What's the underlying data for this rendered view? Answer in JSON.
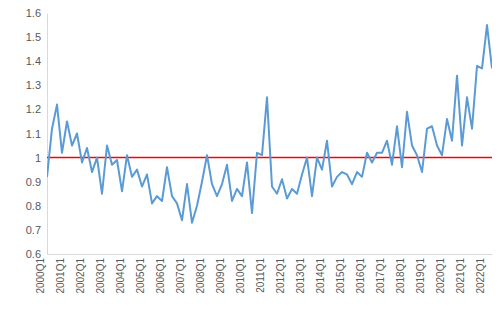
{
  "chart_data": {
    "type": "line",
    "categories": [
      "2000Q1",
      null,
      null,
      null,
      "2001Q1",
      null,
      null,
      null,
      "2002Q1",
      null,
      null,
      null,
      "2003Q1",
      null,
      null,
      null,
      "2004Q1",
      null,
      null,
      null,
      "2005Q1",
      null,
      null,
      null,
      "2006Q1",
      null,
      null,
      null,
      "2007Q1",
      null,
      null,
      null,
      "2008Q1",
      null,
      null,
      null,
      "2009Q1",
      null,
      null,
      null,
      "2010Q1",
      null,
      null,
      null,
      "2011Q1",
      null,
      null,
      null,
      "2012Q1",
      null,
      null,
      null,
      "2013Q1",
      null,
      null,
      null,
      "2014Q1",
      null,
      null,
      null,
      "2015Q1",
      null,
      null,
      null,
      "2016Q1",
      null,
      null,
      null,
      "2017Q1",
      null,
      null,
      null,
      "2018Q1",
      null,
      null,
      null,
      "2019Q1",
      null,
      null,
      null,
      "2020Q1",
      null,
      null,
      null,
      "2021Q1",
      null,
      null,
      null,
      "2022Q1",
      null
    ],
    "values": [
      0.92,
      1.12,
      1.22,
      1.02,
      1.15,
      1.05,
      1.1,
      0.98,
      1.04,
      0.94,
      1.0,
      0.85,
      1.05,
      0.97,
      0.99,
      0.86,
      1.01,
      0.92,
      0.95,
      0.88,
      0.93,
      0.81,
      0.84,
      0.82,
      0.96,
      0.84,
      0.81,
      0.74,
      0.89,
      0.73,
      0.8,
      0.9,
      1.01,
      0.89,
      0.84,
      0.89,
      0.97,
      0.82,
      0.87,
      0.84,
      0.98,
      0.77,
      1.02,
      1.01,
      1.25,
      0.88,
      0.85,
      0.91,
      0.83,
      0.87,
      0.85,
      0.93,
      1.0,
      0.84,
      1.0,
      0.95,
      1.07,
      0.88,
      0.92,
      0.94,
      0.93,
      0.89,
      0.94,
      0.92,
      1.02,
      0.98,
      1.02,
      1.02,
      1.07,
      0.97,
      1.13,
      0.96,
      1.19,
      1.05,
      1.01,
      0.94,
      1.12,
      1.13,
      1.05,
      1.01,
      1.16,
      1.07,
      1.34,
      1.05,
      1.25,
      1.12,
      1.38,
      1.37,
      1.55,
      1.37
    ],
    "color": "#5b9bd5",
    "ylim": [
      0.6,
      1.6
    ],
    "yticks": [
      0.6,
      0.7,
      0.8,
      0.9,
      1,
      1.1,
      1.2,
      1.3,
      1.4,
      1.5,
      1.6
    ],
    "reference_line": {
      "value": 1,
      "color": "#ff0000"
    },
    "grid": false
  }
}
